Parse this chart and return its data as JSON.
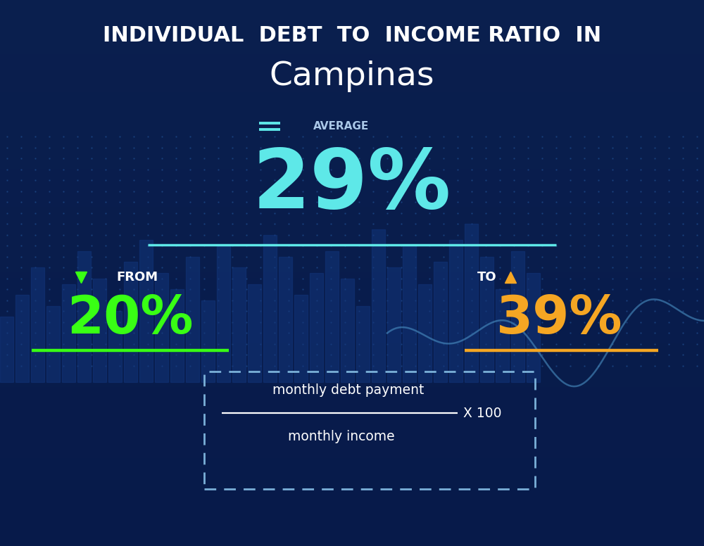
{
  "title_line1": "INDIVIDUAL  DEBT  TO  INCOME RATIO  IN",
  "title_line2": "Campinas",
  "average_label": "AVERAGE",
  "average_value": "29%",
  "from_label": "FROM",
  "from_value": "20%",
  "to_label": "TO",
  "to_value": "39%",
  "formula_numerator": "monthly debt payment",
  "formula_denominator": "monthly income",
  "formula_multiplier": "X 100",
  "bg_color_top": "#0a1f4e",
  "bg_color_bottom": "#071a4a",
  "average_color": "#5ee8e8",
  "from_color": "#39ff14",
  "to_color": "#f5a623",
  "text_color": "#ffffff",
  "label_color": "#aac8e8",
  "underline_average_color": "#5ee8e8",
  "underline_from_color": "#39ff14",
  "underline_to_color": "#f5a623",
  "formula_box_color": "#7ab0d8",
  "chart_line_color": "#4a90c4",
  "bar_color": "#12357a"
}
